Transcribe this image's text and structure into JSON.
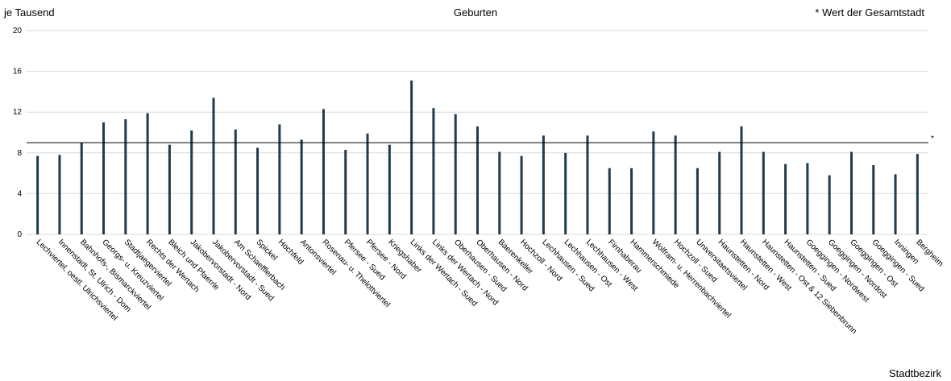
{
  "chart_data": {
    "type": "bar",
    "title": "Geburten",
    "ylabel": "je Tausend",
    "xlabel": "Stadtbezirk",
    "note": "* Wert der Gesamtstadt",
    "reference_marker": "*",
    "ylim": [
      0,
      20
    ],
    "yticks": [
      0,
      4,
      8,
      12,
      16,
      20
    ],
    "grid": true,
    "reference_line": 9.0,
    "colors": {
      "bar": "#1f3b4d",
      "grid": "#d9d9d9",
      "reference": "#000000"
    },
    "categories": [
      "Lechviertel, oestl. Ulrichsviertel",
      "Innenstadt, St. Ulrich - Dom",
      "Bahnhofs-, Bismarckviertel",
      "Georgs- u. Kreuzviertel",
      "Stadtjaegerviertel",
      "Rechts der Wertach",
      "Bleich und Pfaerrle",
      "Jakobervorstadt - Nord",
      "Jakobervorstadt - Sued",
      "Am Schaefflerbach",
      "Spickel",
      "Hochfeld",
      "Antonsviertel",
      "Rosenau- u. Thelottviertel",
      "Pfersee - Sued",
      "Pfersee - Nord",
      "Kriegshaber",
      "Links der Wertach - Sued",
      "Links der Wertach - Nord",
      "Oberhausen - Sued",
      "Oberhausen - Nord",
      "Baerenkeller",
      "Hochzoll - Nord",
      "Lechhausen - Sued",
      "Lechhausen - Ost",
      "Lechhausen - West",
      "Firnhaberau",
      "Hammerschmiede",
      "Wolfram- u. Herrenbachviertel",
      "Hochzoll - Sued",
      "Universitaetsviertel",
      "Haunstetten - Nord",
      "Haunstetten - West",
      "Haunstetten - Ost & 12 Siebenbrunn",
      "Haunstetten - Sued",
      "Goeggingen - Nordwest",
      "Goeggingen - Nordost",
      "Goeggingen - Ost",
      "Goeggingen - Sued",
      "Inningen",
      "Bergheim"
    ],
    "values": [
      7.7,
      7.8,
      9.0,
      11.0,
      11.3,
      11.9,
      8.8,
      10.2,
      13.4,
      10.3,
      8.5,
      10.8,
      9.3,
      12.3,
      8.3,
      9.9,
      8.8,
      15.1,
      12.4,
      11.8,
      10.6,
      8.1,
      7.7,
      9.7,
      8.0,
      9.7,
      6.5,
      6.5,
      10.1,
      9.7,
      6.5,
      8.1,
      10.6,
      8.1,
      6.9,
      7.0,
      5.8,
      8.1,
      6.8,
      5.9,
      7.9
    ]
  }
}
